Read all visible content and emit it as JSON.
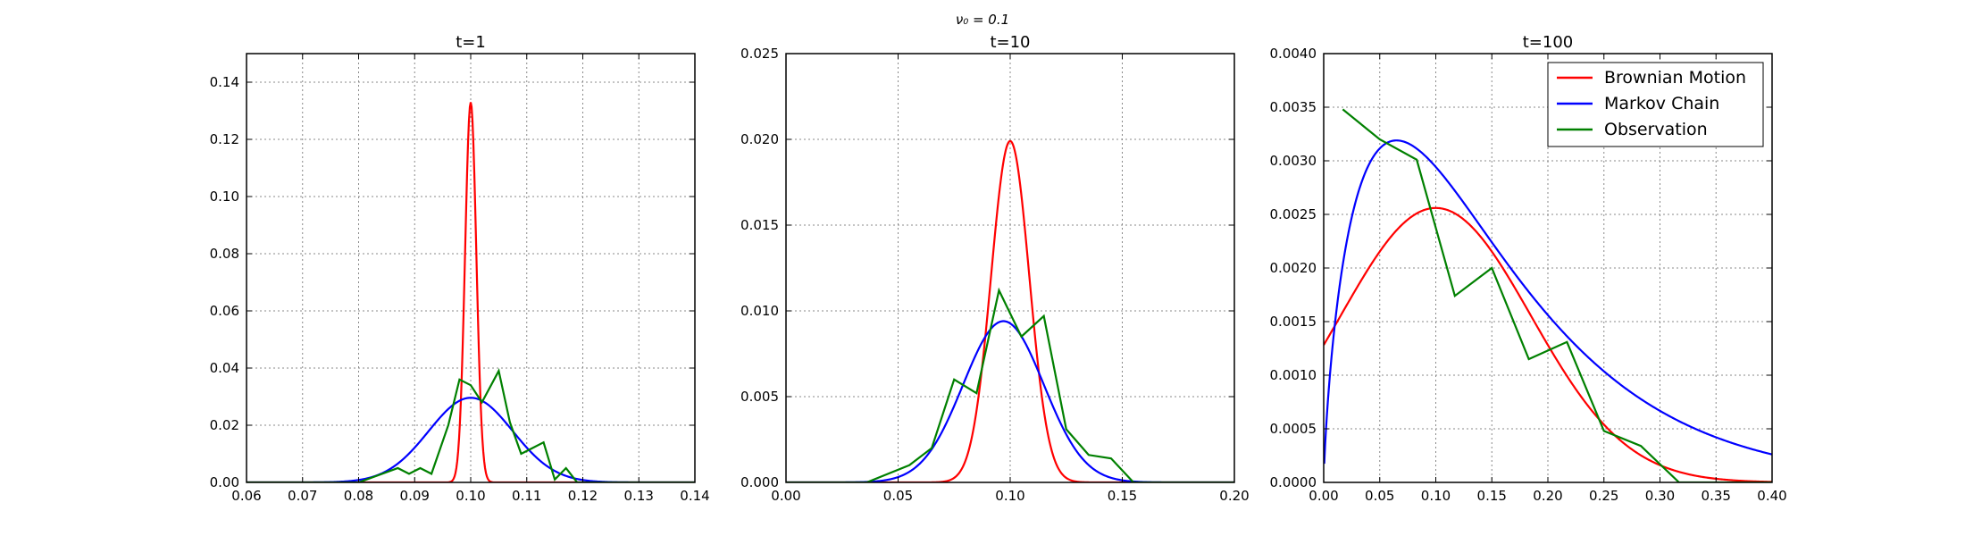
{
  "figure": {
    "suptitle": "ν₀ = 0.1",
    "colors": {
      "brownian": "#ff0000",
      "markov": "#0000ff",
      "observation": "#008000"
    }
  },
  "chart_data": [
    {
      "type": "line",
      "title": "t=1",
      "xlabel": "",
      "ylabel": "",
      "xlim": [
        0.06,
        0.14
      ],
      "ylim": [
        0,
        0.15
      ],
      "xticks": [
        "0.06",
        "0.07",
        "0.08",
        "0.09",
        "0.10",
        "0.11",
        "0.12",
        "0.13",
        "0.14"
      ],
      "xtick_values": [
        0.06,
        0.07,
        0.08,
        0.09,
        0.1,
        0.11,
        0.12,
        0.13,
        0.14
      ],
      "yticks": [
        "0.00",
        "0.02",
        "0.04",
        "0.06",
        "0.08",
        "0.10",
        "0.12",
        "0.14"
      ],
      "ytick_values": [
        0,
        0.02,
        0.04,
        0.06,
        0.08,
        0.1,
        0.12,
        0.14
      ],
      "grid": true,
      "series": [
        {
          "name": "Brownian Motion",
          "color": "#ff0000",
          "curve": "gaussian",
          "mu": 0.1,
          "sigma": 0.001,
          "peak": 0.133,
          "x_range": [
            0.06,
            0.14
          ]
        },
        {
          "name": "Markov Chain",
          "color": "#0000ff",
          "curve": "gaussian",
          "mu": 0.1,
          "sigma": 0.0075,
          "peak": 0.0296,
          "x_range": [
            0.06,
            0.14
          ]
        },
        {
          "name": "Observation",
          "color": "#008000",
          "curve": "points",
          "x": [
            0.06,
            0.08,
            0.087,
            0.089,
            0.091,
            0.093,
            0.096,
            0.098,
            0.1,
            0.102,
            0.105,
            0.107,
            0.109,
            0.111,
            0.113,
            0.115,
            0.117,
            0.119,
            0.14
          ],
          "y": [
            0,
            0,
            0.005,
            0.003,
            0.005,
            0.003,
            0.02,
            0.036,
            0.034,
            0.028,
            0.039,
            0.021,
            0.01,
            0.012,
            0.014,
            0.001,
            0.005,
            0,
            0
          ]
        }
      ]
    },
    {
      "type": "line",
      "title": "t=10",
      "xlabel": "",
      "ylabel": "",
      "xlim": [
        0,
        0.2
      ],
      "ylim": [
        0,
        0.025
      ],
      "xticks": [
        "0.00",
        "0.05",
        "0.10",
        "0.15",
        "0.20"
      ],
      "xtick_values": [
        0,
        0.05,
        0.1,
        0.15,
        0.2
      ],
      "yticks": [
        "0.000",
        "0.005",
        "0.010",
        "0.015",
        "0.020",
        "0.025"
      ],
      "ytick_values": [
        0,
        0.005,
        0.01,
        0.015,
        0.02,
        0.025
      ],
      "grid": true,
      "series": [
        {
          "name": "Brownian Motion",
          "color": "#ff0000",
          "curve": "gaussian",
          "mu": 0.1,
          "sigma": 0.0085,
          "peak": 0.0199,
          "x_range": [
            0,
            0.2
          ]
        },
        {
          "name": "Markov Chain",
          "color": "#0000ff",
          "curve": "gaussian",
          "mu": 0.097,
          "sigma": 0.018,
          "peak": 0.0094,
          "x_range": [
            0,
            0.2
          ]
        },
        {
          "name": "Observation",
          "color": "#008000",
          "curve": "points",
          "x": [
            0.0,
            0.036,
            0.055,
            0.065,
            0.075,
            0.085,
            0.095,
            0.105,
            0.115,
            0.125,
            0.135,
            0.145,
            0.155,
            0.2
          ],
          "y": [
            0,
            0,
            0.001,
            0.002,
            0.006,
            0.0052,
            0.0112,
            0.0085,
            0.0097,
            0.0031,
            0.0016,
            0.0014,
            0,
            0
          ]
        }
      ]
    },
    {
      "type": "line",
      "title": "t=100",
      "xlabel": "",
      "ylabel": "",
      "xlim": [
        0,
        0.4
      ],
      "ylim": [
        0,
        0.004
      ],
      "xticks": [
        "0.00",
        "0.05",
        "0.10",
        "0.15",
        "0.20",
        "0.25",
        "0.30",
        "0.35",
        "0.40"
      ],
      "xtick_values": [
        0,
        0.05,
        0.1,
        0.15,
        0.2,
        0.25,
        0.3,
        0.35,
        0.4
      ],
      "yticks": [
        "0.0000",
        "0.0005",
        "0.0010",
        "0.0015",
        "0.0020",
        "0.0025",
        "0.0030",
        "0.0035",
        "0.0040"
      ],
      "ytick_values": [
        0,
        0.0005,
        0.001,
        0.0015,
        0.002,
        0.0025,
        0.003,
        0.0035,
        0.004
      ],
      "grid": true,
      "legend": "top-right",
      "series": [
        {
          "name": "Brownian Motion",
          "color": "#ff0000",
          "curve": "gaussian",
          "mu": 0.1,
          "sigma": 0.085,
          "peak": 0.00256,
          "x_range": [
            0,
            0.4
          ]
        },
        {
          "name": "Markov Chain",
          "color": "#0000ff",
          "curve": "gamma",
          "mode": 0.065,
          "k": 1.75,
          "peak": 0.00319,
          "x_range": [
            0.0005,
            0.4
          ]
        },
        {
          "name": "Observation",
          "color": "#008000",
          "curve": "points",
          "x": [
            0.017,
            0.05,
            0.083,
            0.117,
            0.15,
            0.183,
            0.217,
            0.25,
            0.283,
            0.317,
            0.4
          ],
          "y": [
            0.00348,
            0.0032,
            0.00301,
            0.00174,
            0.002,
            0.00115,
            0.00131,
            0.00048,
            0.00034,
            0,
            0
          ]
        }
      ]
    }
  ]
}
